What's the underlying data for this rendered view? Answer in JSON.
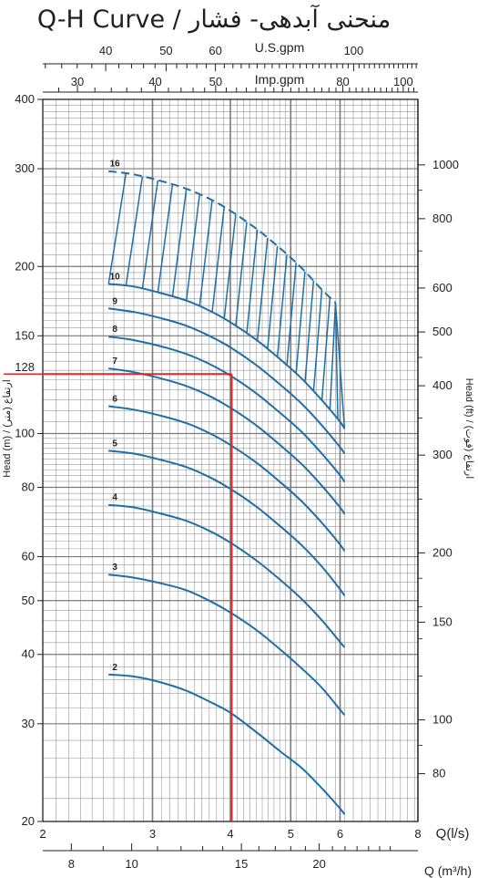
{
  "chart_data": {
    "type": "line",
    "title": "Q-H Curve / منحنی آبدهی- فشار",
    "colors": {
      "curve": "#1f6fa6",
      "highlight": "#e3262b",
      "grid": "#888888",
      "text": "#231f20"
    },
    "x_axis": {
      "label": "Q(l/s)",
      "scale": "log",
      "range": [
        2,
        8
      ],
      "ticks": [
        "2",
        "3",
        "4",
        "5",
        "6",
        "8"
      ]
    },
    "x_axis_secondary": {
      "label": "Q (m³/h)",
      "ticks": [
        "8",
        "10",
        "15",
        "20"
      ]
    },
    "x_axis_top_1": {
      "label": "U.S.gpm",
      "ticks": [
        "40",
        "50",
        "60",
        "100"
      ]
    },
    "x_axis_top_2": {
      "label": "Imp.gpm",
      "ticks": [
        "30",
        "40",
        "50",
        "80",
        "100"
      ]
    },
    "y_axis_left": {
      "label": "Head (m) / ارتفاع (متر)",
      "scale": "log",
      "range": [
        20,
        400
      ],
      "ticks": [
        "20",
        "30",
        "40",
        "50",
        "60",
        "80",
        "100",
        "150",
        "200",
        "300",
        "400"
      ]
    },
    "y_axis_right": {
      "label": "Head (ft) / ارتفاع (فوت)",
      "ticks": [
        "80",
        "100",
        "150",
        "200",
        "300",
        "400",
        "500",
        "600",
        "800",
        "1000"
      ]
    },
    "reference_line": {
      "x": 4.02,
      "y": 128,
      "label": "128"
    },
    "series": [
      {
        "name": "2",
        "x": [
          2.55,
          2.8,
          3.1,
          3.4,
          3.7,
          4.0,
          4.4,
          4.8,
          5.2,
          5.6,
          6.0,
          6.1
        ],
        "y": [
          36.8,
          36.5,
          35.6,
          34.4,
          32.9,
          31.4,
          29.0,
          26.8,
          25.0,
          23.0,
          21.1,
          20.6
        ]
      },
      {
        "name": "3",
        "x": [
          2.55,
          2.8,
          3.1,
          3.4,
          3.7,
          4.0,
          4.4,
          4.8,
          5.2,
          5.6,
          6.0,
          6.1
        ],
        "y": [
          55.7,
          55.0,
          53.7,
          52.2,
          50.0,
          47.6,
          44.3,
          40.9,
          37.8,
          34.9,
          31.8,
          31.1
        ]
      },
      {
        "name": "4",
        "x": [
          2.55,
          2.8,
          3.1,
          3.4,
          3.7,
          4.0,
          4.4,
          4.8,
          5.2,
          5.6,
          6.0,
          6.1
        ],
        "y": [
          74.4,
          73.6,
          71.7,
          69.6,
          66.8,
          63.6,
          59.1,
          54.6,
          50.4,
          46.2,
          42.1,
          41.2
        ]
      },
      {
        "name": "5",
        "x": [
          2.55,
          2.8,
          3.1,
          3.4,
          3.7,
          4.0,
          4.4,
          4.8,
          5.2,
          5.6,
          6.0,
          6.1
        ],
        "y": [
          93.1,
          92.0,
          89.6,
          87.0,
          83.5,
          79.5,
          73.9,
          68.2,
          63.0,
          57.7,
          52.4,
          51.0
        ]
      },
      {
        "name": "6",
        "x": [
          2.55,
          2.8,
          3.1,
          3.4,
          3.7,
          4.0,
          4.4,
          4.8,
          5.2,
          5.6,
          6.0,
          6.1
        ],
        "y": [
          112,
          110.4,
          107.6,
          104.4,
          100.2,
          95.4,
          88.7,
          81.9,
          75.6,
          69.2,
          63.1,
          61.4
        ]
      },
      {
        "name": "7",
        "x": [
          2.55,
          2.8,
          3.1,
          3.4,
          3.7,
          4.0,
          4.4,
          4.8,
          5.2,
          5.6,
          6.0,
          6.1
        ],
        "y": [
          131,
          129,
          125.6,
          121.8,
          116.9,
          111.3,
          103.5,
          95.5,
          88.2,
          80.7,
          73.6,
          71.6
        ]
      },
      {
        "name": "8",
        "x": [
          2.55,
          2.8,
          3.1,
          3.4,
          3.7,
          4.0,
          4.4,
          4.8,
          5.2,
          5.6,
          6.0,
          6.1
        ],
        "y": [
          149.5,
          147.3,
          143.5,
          139.1,
          133.5,
          127.2,
          118.2,
          109.1,
          100.8,
          92.2,
          84.1,
          81.8
        ]
      },
      {
        "name": "9",
        "x": [
          2.55,
          2.8,
          3.1,
          3.4,
          3.7,
          4.0,
          4.4,
          4.8,
          5.2,
          5.6,
          6.0,
          6.1
        ],
        "y": [
          168,
          165.6,
          161.3,
          156.4,
          150,
          143,
          132.9,
          122.7,
          113.3,
          103.7,
          94.5,
          92
        ]
      },
      {
        "name": "10",
        "x": [
          2.55,
          2.8,
          3.1,
          3.4,
          3.7,
          4.0,
          4.4,
          4.8,
          5.2,
          5.6,
          6.0,
          6.1
        ],
        "y": [
          186,
          184,
          179,
          173.6,
          166.6,
          158.7,
          147.6,
          136.3,
          125.8,
          115.1,
          105,
          102
        ]
      },
      {
        "name": "16",
        "x": [
          2.55,
          2.8,
          3.1,
          3.4,
          3.7,
          4.0,
          4.4,
          4.8,
          5.2,
          5.6,
          5.9
        ],
        "y": [
          297,
          293,
          285,
          276,
          265,
          252,
          234,
          216,
          199,
          182,
          172
        ],
        "style": "dashed"
      }
    ]
  }
}
